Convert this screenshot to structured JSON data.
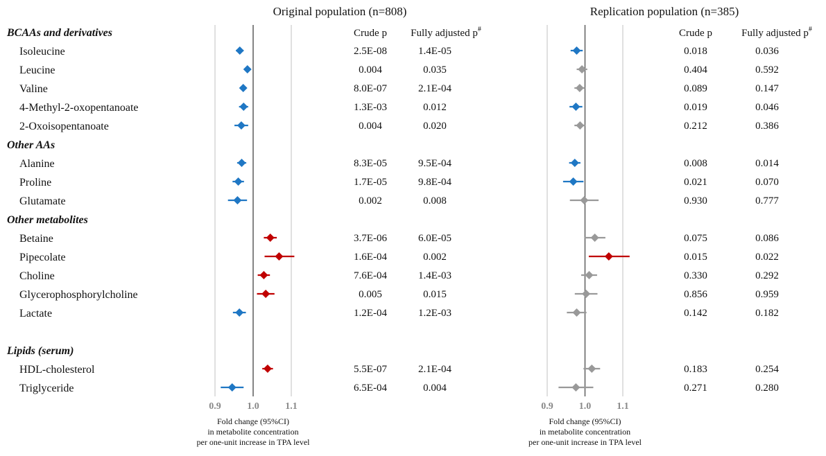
{
  "chart_data": {
    "type": "forest",
    "rows": [
      {
        "kind": "group",
        "label": "BCAAs and derivatives"
      },
      {
        "kind": "item",
        "label": "Isoleucine",
        "orig": {
          "fc": 0.965,
          "lo": 0.955,
          "hi": 0.975,
          "sig": "decrease",
          "crude_p": "2.5E-08",
          "adj_p": "1.4E-05"
        },
        "rep": {
          "fc": 0.978,
          "lo": 0.962,
          "hi": 0.994,
          "sig": "decrease",
          "crude_p": "0.018",
          "adj_p": "0.036"
        }
      },
      {
        "kind": "item",
        "label": "Leucine",
        "orig": {
          "fc": 0.985,
          "lo": 0.978,
          "hi": 0.992,
          "sig": "decrease",
          "crude_p": "0.004",
          "adj_p": "0.035"
        },
        "rep": {
          "fc": 0.992,
          "lo": 0.978,
          "hi": 1.006,
          "sig": "ns",
          "crude_p": "0.404",
          "adj_p": "0.592"
        }
      },
      {
        "kind": "item",
        "label": "Valine",
        "orig": {
          "fc": 0.974,
          "lo": 0.966,
          "hi": 0.982,
          "sig": "decrease",
          "crude_p": "8.0E-07",
          "adj_p": "2.1E-04"
        },
        "rep": {
          "fc": 0.986,
          "lo": 0.972,
          "hi": 1.0,
          "sig": "ns",
          "crude_p": "0.089",
          "adj_p": "0.147"
        }
      },
      {
        "kind": "item",
        "label": "4-Methyl-2-oxopentanoate",
        "orig": {
          "fc": 0.975,
          "lo": 0.963,
          "hi": 0.987,
          "sig": "decrease",
          "crude_p": "1.3E-03",
          "adj_p": "0.012"
        },
        "rep": {
          "fc": 0.976,
          "lo": 0.959,
          "hi": 0.993,
          "sig": "decrease",
          "crude_p": "0.019",
          "adj_p": "0.046"
        }
      },
      {
        "kind": "item",
        "label": "2-Oxoisopentanoate",
        "orig": {
          "fc": 0.969,
          "lo": 0.951,
          "hi": 0.987,
          "sig": "decrease",
          "crude_p": "0.004",
          "adj_p": "0.020"
        },
        "rep": {
          "fc": 0.987,
          "lo": 0.972,
          "hi": 1.002,
          "sig": "ns",
          "crude_p": "0.212",
          "adj_p": "0.386"
        }
      },
      {
        "kind": "group",
        "label": "Other AAs"
      },
      {
        "kind": "item",
        "label": "Alanine",
        "orig": {
          "fc": 0.97,
          "lo": 0.958,
          "hi": 0.982,
          "sig": "decrease",
          "crude_p": "8.3E-05",
          "adj_p": "9.5E-04"
        },
        "rep": {
          "fc": 0.973,
          "lo": 0.958,
          "hi": 0.988,
          "sig": "decrease",
          "crude_p": "0.008",
          "adj_p": "0.014"
        }
      },
      {
        "kind": "item",
        "label": "Proline",
        "orig": {
          "fc": 0.961,
          "lo": 0.946,
          "hi": 0.976,
          "sig": "decrease",
          "crude_p": "1.7E-05",
          "adj_p": "9.8E-04"
        },
        "rep": {
          "fc": 0.969,
          "lo": 0.942,
          "hi": 0.996,
          "sig": "decrease",
          "crude_p": "0.021",
          "adj_p": "0.070"
        }
      },
      {
        "kind": "item",
        "label": "Glutamate",
        "orig": {
          "fc": 0.959,
          "lo": 0.934,
          "hi": 0.984,
          "sig": "decrease",
          "crude_p": "0.002",
          "adj_p": "0.008"
        },
        "rep": {
          "fc": 0.998,
          "lo": 0.96,
          "hi": 1.036,
          "sig": "ns",
          "crude_p": "0.930",
          "adj_p": "0.777"
        }
      },
      {
        "kind": "group",
        "label": "Other metabolites"
      },
      {
        "kind": "item",
        "label": "Betaine",
        "orig": {
          "fc": 1.045,
          "lo": 1.028,
          "hi": 1.062,
          "sig": "increase",
          "crude_p": "3.7E-06",
          "adj_p": "6.0E-05"
        },
        "rep": {
          "fc": 1.026,
          "lo": 0.998,
          "hi": 1.054,
          "sig": "ns",
          "crude_p": "0.075",
          "adj_p": "0.086"
        }
      },
      {
        "kind": "item",
        "label": "Pipecolate",
        "orig": {
          "fc": 1.068,
          "lo": 1.03,
          "hi": 1.108,
          "sig": "increase",
          "crude_p": "1.6E-04",
          "adj_p": "0.002"
        },
        "rep": {
          "fc": 1.063,
          "lo": 1.01,
          "hi": 1.118,
          "sig": "increase",
          "crude_p": "0.015",
          "adj_p": "0.022"
        }
      },
      {
        "kind": "item",
        "label": "Choline",
        "orig": {
          "fc": 1.028,
          "lo": 1.012,
          "hi": 1.044,
          "sig": "increase",
          "crude_p": "7.6E-04",
          "adj_p": "1.4E-03"
        },
        "rep": {
          "fc": 1.011,
          "lo": 0.99,
          "hi": 1.032,
          "sig": "ns",
          "crude_p": "0.330",
          "adj_p": "0.292"
        }
      },
      {
        "kind": "item",
        "label": "Glycerophosphorylcholine",
        "orig": {
          "fc": 1.033,
          "lo": 1.01,
          "hi": 1.056,
          "sig": "increase",
          "crude_p": "0.005",
          "adj_p": "0.015"
        },
        "rep": {
          "fc": 1.003,
          "lo": 0.973,
          "hi": 1.033,
          "sig": "ns",
          "crude_p": "0.856",
          "adj_p": "0.959"
        }
      },
      {
        "kind": "item",
        "label": "Lactate",
        "orig": {
          "fc": 0.964,
          "lo": 0.947,
          "hi": 0.981,
          "sig": "decrease",
          "crude_p": "1.2E-04",
          "adj_p": "1.2E-03"
        },
        "rep": {
          "fc": 0.978,
          "lo": 0.952,
          "hi": 1.004,
          "sig": "ns",
          "crude_p": "0.142",
          "adj_p": "0.182"
        }
      },
      {
        "kind": "spacer"
      },
      {
        "kind": "group",
        "label": "Lipids (serum)"
      },
      {
        "kind": "item",
        "label": "HDL-cholesterol",
        "orig": {
          "fc": 1.038,
          "lo": 1.024,
          "hi": 1.052,
          "sig": "increase",
          "crude_p": "5.5E-07",
          "adj_p": "2.1E-04"
        },
        "rep": {
          "fc": 1.018,
          "lo": 0.996,
          "hi": 1.04,
          "sig": "ns",
          "crude_p": "0.183",
          "adj_p": "0.254"
        }
      },
      {
        "kind": "item",
        "label": "Triglyceride",
        "orig": {
          "fc": 0.945,
          "lo": 0.915,
          "hi": 0.975,
          "sig": "decrease",
          "crude_p": "6.5E-04",
          "adj_p": "0.004"
        },
        "rep": {
          "fc": 0.976,
          "lo": 0.93,
          "hi": 1.022,
          "sig": "ns",
          "crude_p": "0.271",
          "adj_p": "0.280"
        }
      }
    ],
    "panels": {
      "orig": {
        "title": "Original population (n=808)"
      },
      "rep": {
        "title": "Replication population (n=385)"
      }
    },
    "columns": {
      "crude": "Crude p",
      "adjusted": "Fully adjusted p",
      "adjusted_mark": "#"
    },
    "x_ticks": [
      0.9,
      1.0,
      1.1
    ],
    "x_tick_labels": [
      "0.9",
      "1.0",
      "1.1"
    ],
    "xlim": [
      0.9,
      1.1
    ],
    "reference_line": 1.0,
    "xlabel": [
      "Fold change (95%CI)",
      "in metabolite concentration",
      "per one-unit increase in TPA level"
    ],
    "colors": {
      "decrease": "#1f77c4",
      "increase": "#c00000",
      "ns": "#999999",
      "grid": "#d9d9d9",
      "reference": "#666666",
      "tick": "#888888"
    }
  }
}
